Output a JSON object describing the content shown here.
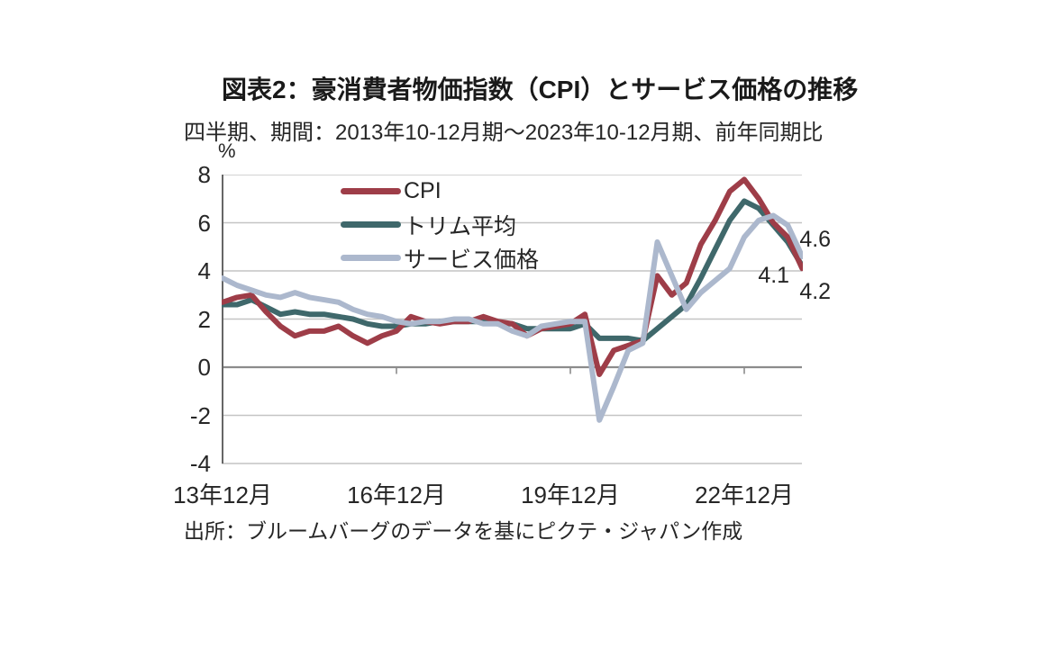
{
  "page": {
    "title": "図表2：豪消費者物価指数（CPI）とサービス価格の推移",
    "subtitle": "四半期、期間：2013年10-12月期～2023年10-12月期、前年同期比",
    "source": "出所：ブルームバーグのデータを基にピクテ・ジャパン作成"
  },
  "chart_data": {
    "type": "line",
    "title": "図表2：豪消費者物価指数（CPI）とサービス価格の推移",
    "subtitle": "四半期、期間：2013年10-12月期～2023年10-12月期、前年同期比",
    "unit_label": "%",
    "frequency": "quarterly",
    "x_start": "2013Q4",
    "x_end": "2023Q4",
    "ylim": [
      -4,
      8
    ],
    "y_ticks": [
      8,
      6,
      4,
      2,
      0,
      -2,
      -4
    ],
    "x_tick_labels": [
      "13年12月",
      "16年12月",
      "19年12月",
      "22年12月"
    ],
    "x_tick_quarter_indices": [
      0,
      12,
      24,
      36
    ],
    "grid": true,
    "legend_position": "top-left-inside",
    "colors": {
      "cpi": "#9E3D48",
      "trimmed_mean": "#3F686B",
      "services": "#ACB8CD",
      "grid_light": "#c4c4c4",
      "zero_line": "#8c8c8c",
      "axis_line": "#666666"
    },
    "series": [
      {
        "id": "cpi",
        "name": "CPI",
        "color": "#9E3D48",
        "values": [
          2.7,
          2.9,
          3.0,
          2.3,
          1.7,
          1.3,
          1.5,
          1.5,
          1.7,
          1.3,
          1.0,
          1.3,
          1.5,
          2.1,
          1.9,
          1.8,
          1.9,
          1.9,
          2.1,
          1.9,
          1.8,
          1.3,
          1.6,
          1.7,
          1.8,
          2.2,
          -0.3,
          0.7,
          0.9,
          1.1,
          3.8,
          3.0,
          3.5,
          5.1,
          6.1,
          7.3,
          7.8,
          7.0,
          6.0,
          5.4,
          4.1
        ]
      },
      {
        "id": "trimmed_mean",
        "name": "トリム平均",
        "color": "#3F686B",
        "values": [
          2.6,
          2.6,
          2.8,
          2.5,
          2.2,
          2.3,
          2.2,
          2.2,
          2.1,
          2.0,
          1.8,
          1.7,
          1.7,
          1.8,
          1.8,
          1.9,
          1.9,
          1.9,
          1.9,
          1.8,
          1.8,
          1.6,
          1.6,
          1.6,
          1.6,
          1.8,
          1.2,
          1.2,
          1.2,
          1.1,
          1.6,
          2.1,
          2.6,
          3.7,
          4.9,
          6.1,
          6.9,
          6.6,
          5.9,
          5.2,
          4.2
        ]
      },
      {
        "id": "services",
        "name": "サービス価格",
        "color": "#ACB8CD",
        "values": [
          3.7,
          3.4,
          3.2,
          3.0,
          2.9,
          3.1,
          2.9,
          2.8,
          2.7,
          2.4,
          2.2,
          2.1,
          1.9,
          1.8,
          1.9,
          1.9,
          2.0,
          2.0,
          1.8,
          1.8,
          1.5,
          1.3,
          1.7,
          1.8,
          1.9,
          1.9,
          -2.2,
          -0.8,
          0.7,
          1.0,
          5.2,
          3.8,
          2.4,
          3.1,
          3.6,
          4.1,
          5.4,
          6.1,
          6.3,
          5.9,
          4.6
        ]
      }
    ],
    "annotations": [
      {
        "label": "4.6",
        "series_id": "services",
        "value": 4.6
      },
      {
        "label": "4.1",
        "series_id": "cpi",
        "value": 4.1
      },
      {
        "label": "4.2",
        "series_id": "trimmed_mean",
        "value": 4.2
      }
    ]
  }
}
